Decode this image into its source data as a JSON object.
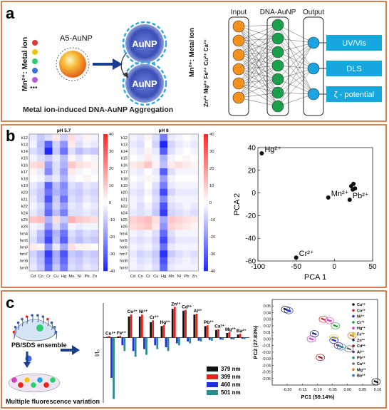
{
  "panels": {
    "a": {
      "letter": "a",
      "metal_label": "Mn²⁺: Metal ion",
      "probe_label": "A5-AuNP",
      "particle_label": "AuNP",
      "caption": "Metal ion-induced DNA-AuNP Aggregation",
      "nn_left_label_1": "Mn²⁺: Metal ion",
      "nn_left_label_2": "Zn²⁺ Mg²⁺ Fe²⁺ Cu²⁺ Ca²⁺",
      "layer_labels": [
        "Input",
        "DNA-AuNP",
        "Output"
      ],
      "outputs": [
        "UV/Vis",
        "DLS",
        "ζ - potential"
      ],
      "dot_colors": [
        "#e03a3a",
        "#f1c40f",
        "#2ecc71",
        "#3a6fe0",
        "#b05ce0"
      ],
      "ellipsis": "•••"
    },
    "b": {
      "letter": "b",
      "heatmaps": [
        {
          "title": "pH 5.7",
          "rows": [
            "k12",
            "k13",
            "k14",
            "k15",
            "k16",
            "k17",
            "k18",
            "k19",
            "k20",
            "k21",
            "k22",
            "k24",
            "k25",
            "k26",
            "hm4",
            "hm5",
            "hm6",
            "hm7",
            "hm8",
            "hm9"
          ],
          "cols": [
            "Cd",
            "Co",
            "Cr",
            "Cu",
            "Hg",
            "Mn",
            "Ni",
            "Pb",
            "Zn"
          ],
          "values": [
            [
              -4,
              -10,
              -6,
              4,
              -8,
              6,
              -4,
              2,
              -2
            ],
            [
              -2,
              -12,
              -30,
              -8,
              -20,
              4,
              -6,
              -2,
              -4
            ],
            [
              -6,
              -10,
              -40,
              -10,
              -26,
              -6,
              -12,
              -8,
              -10
            ],
            [
              -2,
              -6,
              -10,
              -4,
              -12,
              2,
              -4,
              0,
              -2
            ],
            [
              6,
              8,
              -18,
              -6,
              -14,
              10,
              6,
              4,
              2
            ],
            [
              2,
              -4,
              -22,
              -6,
              -18,
              4,
              -2,
              0,
              -2
            ],
            [
              0,
              -2,
              -8,
              -4,
              -14,
              -2,
              0,
              2,
              0
            ],
            [
              -4,
              -8,
              -30,
              -12,
              -22,
              -6,
              -8,
              -4,
              -6
            ],
            [
              -6,
              -10,
              -26,
              -14,
              -20,
              -8,
              -10,
              -6,
              -8
            ],
            [
              -4,
              -10,
              -32,
              -10,
              -26,
              -6,
              -8,
              -4,
              -6
            ],
            [
              -2,
              -6,
              -24,
              -8,
              -18,
              -4,
              -6,
              -2,
              -4
            ],
            [
              -4,
              -8,
              -28,
              -12,
              -24,
              -6,
              -6,
              -4,
              -6
            ],
            [
              10,
              12,
              -14,
              6,
              -10,
              14,
              10,
              8,
              6
            ],
            [
              -2,
              -4,
              -20,
              -6,
              -16,
              -2,
              -4,
              -2,
              -2
            ],
            [
              -4,
              -12,
              -30,
              -14,
              -26,
              -6,
              -10,
              -6,
              -8
            ],
            [
              -6,
              -14,
              -34,
              -12,
              -30,
              -8,
              -12,
              -8,
              -10
            ],
            [
              4,
              2,
              -20,
              -4,
              -16,
              6,
              2,
              2,
              0
            ],
            [
              -8,
              -14,
              -36,
              -16,
              -32,
              -10,
              -12,
              -8,
              -10
            ],
            [
              -6,
              -12,
              -32,
              -14,
              -28,
              -8,
              -10,
              -6,
              -8
            ],
            [
              -4,
              -10,
              -28,
              -10,
              -24,
              -6,
              -8,
              -4,
              -6
            ]
          ],
          "colorbar_ticks": [
            40,
            30,
            20,
            10,
            0,
            -10,
            -20,
            -30,
            -40
          ],
          "range": [
            -40,
            40
          ]
        },
        {
          "title": "pH 8",
          "rows": [
            "k12",
            "k13",
            "k14",
            "k15",
            "k16",
            "k17",
            "k18",
            "k19",
            "k20",
            "k21",
            "k22",
            "k24",
            "k25",
            "k26",
            "hm4",
            "hm5",
            "hm6",
            "hm7",
            "hm8",
            "hm9"
          ],
          "cols": [
            "Cd",
            "Co",
            "Cr",
            "Cu",
            "Hg",
            "Mn",
            "Ni",
            "Pb",
            "Zn"
          ],
          "values": [
            [
              -2,
              -4,
              2,
              -6,
              -24,
              -4,
              -2,
              0,
              -2
            ],
            [
              -4,
              -6,
              0,
              -8,
              -40,
              -8,
              -4,
              -2,
              -4
            ],
            [
              -2,
              -4,
              2,
              -4,
              -30,
              -6,
              -2,
              0,
              -2
            ],
            [
              0,
              -2,
              4,
              -2,
              -14,
              -2,
              0,
              2,
              0
            ],
            [
              4,
              6,
              10,
              2,
              -12,
              4,
              6,
              4,
              2
            ],
            [
              -2,
              -4,
              0,
              -4,
              -30,
              -6,
              -2,
              -2,
              -2
            ],
            [
              0,
              -2,
              2,
              -2,
              -18,
              -2,
              0,
              0,
              0
            ],
            [
              -2,
              -4,
              0,
              -6,
              -24,
              -4,
              -2,
              -2,
              -2
            ],
            [
              -4,
              -6,
              -2,
              -8,
              -34,
              -8,
              -4,
              -4,
              -4
            ],
            [
              -2,
              -4,
              0,
              -6,
              -22,
              -4,
              -2,
              -2,
              -2
            ],
            [
              -2,
              -6,
              -2,
              -8,
              -32,
              -6,
              -4,
              -2,
              -4
            ],
            [
              -4,
              -6,
              -4,
              -10,
              -36,
              -8,
              -6,
              -4,
              -6
            ],
            [
              8,
              10,
              12,
              6,
              -16,
              10,
              8,
              6,
              4
            ],
            [
              6,
              8,
              10,
              4,
              -20,
              8,
              6,
              4,
              2
            ],
            [
              -2,
              -4,
              -2,
              -6,
              -28,
              -6,
              -2,
              -2,
              -2
            ],
            [
              -4,
              -6,
              -4,
              -8,
              -34,
              -8,
              -4,
              -4,
              -4
            ],
            [
              -2,
              -4,
              -2,
              -6,
              -26,
              -4,
              -2,
              -2,
              -2
            ],
            [
              -4,
              -8,
              -6,
              -10,
              -38,
              -10,
              -6,
              -4,
              -6
            ],
            [
              -2,
              -6,
              -4,
              -8,
              -32,
              -6,
              -4,
              -2,
              -4
            ],
            [
              -2,
              -4,
              -2,
              -6,
              -28,
              -4,
              -2,
              -2,
              -2
            ]
          ],
          "colorbar_ticks": [
            40,
            30,
            20,
            10,
            0,
            -10,
            -20,
            -30,
            -40
          ],
          "range": [
            -40,
            40
          ]
        }
      ],
      "pca": {
        "type": "scatter",
        "xlabel": "PCA 1",
        "ylabel": "PCA 2",
        "xlim": [
          -100,
          50
        ],
        "ylim": [
          -60,
          40
        ],
        "xticks": [
          -100,
          -50,
          0,
          50
        ],
        "yticks": [
          40,
          20,
          0,
          -20,
          -40,
          -60
        ],
        "points": [
          {
            "x": -95,
            "y": 35,
            "label": "Hg²⁺"
          },
          {
            "x": -8,
            "y": -4,
            "label": "Mn²⁺"
          },
          {
            "x": 20,
            "y": -6,
            "label": "Pb²⁺"
          },
          {
            "x": -50,
            "y": -57,
            "label": "Cr²⁺"
          },
          {
            "x": 22,
            "y": 6,
            "label": ""
          },
          {
            "x": 25,
            "y": 8,
            "label": ""
          },
          {
            "x": 27,
            "y": 4,
            "label": ""
          },
          {
            "x": 24,
            "y": 3,
            "label": ""
          }
        ]
      }
    },
    "c": {
      "letter": "c",
      "ensemble_label": "PB/SDS ensemble",
      "variation_label": "Multiple fluorescence variation",
      "bar_chart": {
        "type": "bar",
        "ylabel": "I/I₀",
        "categories": [
          "Cu²⁺",
          "Fe²⁺",
          "Co²⁺",
          "Ni²⁺",
          "Cr³⁺",
          "Hg²⁺",
          "Zn²⁺",
          "Cd²⁺",
          "Al³⁺",
          "Pb²⁺",
          "Ca²⁺",
          "Mg²⁺",
          "Ba²⁺"
        ],
        "series": [
          {
            "name": "379 nm",
            "color": "#111111",
            "values": [
              0.02,
              0.03,
              0.55,
              0.55,
              0.4,
              0.3,
              0.75,
              0.7,
              0.6,
              0.3,
              0.2,
              0.12,
              0.08
            ]
          },
          {
            "name": "399 nm",
            "color": "#e8231c",
            "values": [
              0.04,
              0.05,
              0.6,
              0.6,
              0.45,
              0.32,
              0.8,
              0.72,
              0.62,
              0.32,
              0.22,
              0.14,
              0.1
            ]
          },
          {
            "name": "460 nm",
            "color": "#1c31d8",
            "values": [
              -1.05,
              -0.2,
              -0.35,
              -0.3,
              -0.2,
              -0.25,
              -0.15,
              -0.1,
              -0.08,
              -0.06,
              -0.05,
              -0.04,
              -0.03
            ]
          },
          {
            "name": "501 nm",
            "color": "#2a8c8c",
            "values": [
              -1.6,
              -0.35,
              -0.5,
              -0.45,
              -0.3,
              -0.35,
              -0.2,
              -0.15,
              -0.1,
              -0.08,
              -0.06,
              -0.05,
              -0.04
            ]
          }
        ],
        "ylim": [
          -1.7,
          0.9
        ]
      },
      "pc_scatter": {
        "type": "scatter",
        "xlabel": "PC1 (59.14%)",
        "ylabel": "PC2 (27.83%)",
        "xlim": [
          -0.25,
          0.1
        ],
        "ylim": [
          -0.07,
          0.06
        ],
        "xticks": [
          "-0.20",
          "-0.15",
          "-0.10",
          "-0.05",
          "0.00",
          "0.05",
          "0.10"
        ],
        "ytick_labels": [
          "0.05",
          "0.04",
          "0.03",
          "0.02",
          "0.01",
          "0.00",
          "-0.01",
          "-0.02",
          "-0.03",
          "-0.04",
          "-0.05",
          "-0.06"
        ],
        "ytick_values": [
          0.05,
          0.04,
          0.03,
          0.02,
          0.01,
          0.0,
          -0.01,
          -0.02,
          -0.03,
          -0.04,
          -0.05,
          -0.06
        ],
        "legend": [
          {
            "name": "Cu²⁺",
            "color": "#111111"
          },
          {
            "name": "Co²⁺",
            "color": "#e8231c"
          },
          {
            "name": "Ni²⁺",
            "color": "#1c31d8"
          },
          {
            "name": "Cr³⁺",
            "color": "#2a9c3a"
          },
          {
            "name": "Hg²⁺",
            "color": "#d63cc8"
          },
          {
            "name": "Fe³⁺",
            "color": "#d8c41c"
          },
          {
            "name": "Zn²⁺",
            "color": "#222288"
          },
          {
            "name": "Cd²⁺",
            "color": "#8c1c1c"
          },
          {
            "name": "Al³⁺",
            "color": "#5a2a8c"
          },
          {
            "name": "Pb²⁺",
            "color": "#1c8c8c"
          },
          {
            "name": "Ca²⁺",
            "color": "#6a6a6a"
          },
          {
            "name": "Mg²⁺",
            "color": "#d87a1c"
          },
          {
            "name": "Ba²⁺",
            "color": "#2a6ad8"
          }
        ],
        "clusters": [
          {
            "x": -0.205,
            "y": 0.045,
            "color": "#111111"
          },
          {
            "x": -0.195,
            "y": 0.043,
            "color": "#1c31d8"
          },
          {
            "x": -0.08,
            "y": 0.03,
            "color": "#e8231c"
          },
          {
            "x": -0.06,
            "y": 0.028,
            "color": "#d63cc8"
          },
          {
            "x": -0.04,
            "y": 0.02,
            "color": "#2a9c3a"
          },
          {
            "x": -0.045,
            "y": 0.002,
            "color": "#d8c41c"
          },
          {
            "x": -0.11,
            "y": 0.008,
            "color": "#222288"
          },
          {
            "x": -0.12,
            "y": 0.0,
            "color": "#d63cc8"
          },
          {
            "x": -0.045,
            "y": -0.002,
            "color": "#1c31d8"
          },
          {
            "x": -0.03,
            "y": -0.01,
            "color": "#5a2a8c"
          },
          {
            "x": -0.09,
            "y": -0.028,
            "color": "#8c1c1c"
          },
          {
            "x": -0.02,
            "y": -0.012,
            "color": "#1c8c8c"
          },
          {
            "x": 0.005,
            "y": -0.015,
            "color": "#6a6a6a"
          },
          {
            "x": 0.015,
            "y": 0.005,
            "color": "#d87a1c"
          },
          {
            "x": 0.095,
            "y": -0.065,
            "color": "#111111"
          }
        ]
      }
    }
  }
}
